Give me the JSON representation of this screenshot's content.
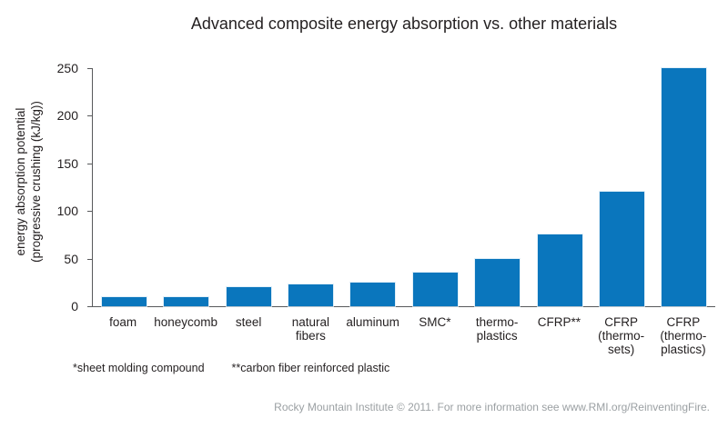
{
  "chart_data": {
    "type": "bar",
    "title": "Advanced composite energy absorption vs. other materials",
    "ylabel": "energy absorption potential\n(progressive crushing (kJ/kg))",
    "xlabel": "",
    "categories": [
      "foam",
      "honeycomb",
      "steel",
      "natural\nfibers",
      "aluminum",
      "SMC*",
      "thermo-\nplastics",
      "CFRP**",
      "CFRP\n(thermo-\nsets)",
      "CFRP\n(thermo-\nplastics)"
    ],
    "values": [
      10,
      10,
      20,
      23,
      25,
      35,
      50,
      75,
      120,
      250
    ],
    "ylim": [
      0,
      250
    ],
    "yticks": [
      0,
      50,
      100,
      150,
      200,
      250
    ],
    "grid": false,
    "legend_position": "none",
    "bar_color": "#0a76bd",
    "axis_color": "#58595b"
  },
  "footnotes": {
    "smc": "*sheet molding compound",
    "cfrp": "**carbon fiber reinforced plastic"
  },
  "footer": {
    "attribution": "Rocky Mountain Institute © 2011. For more information see www.RMI.org/ReinventingFire."
  }
}
